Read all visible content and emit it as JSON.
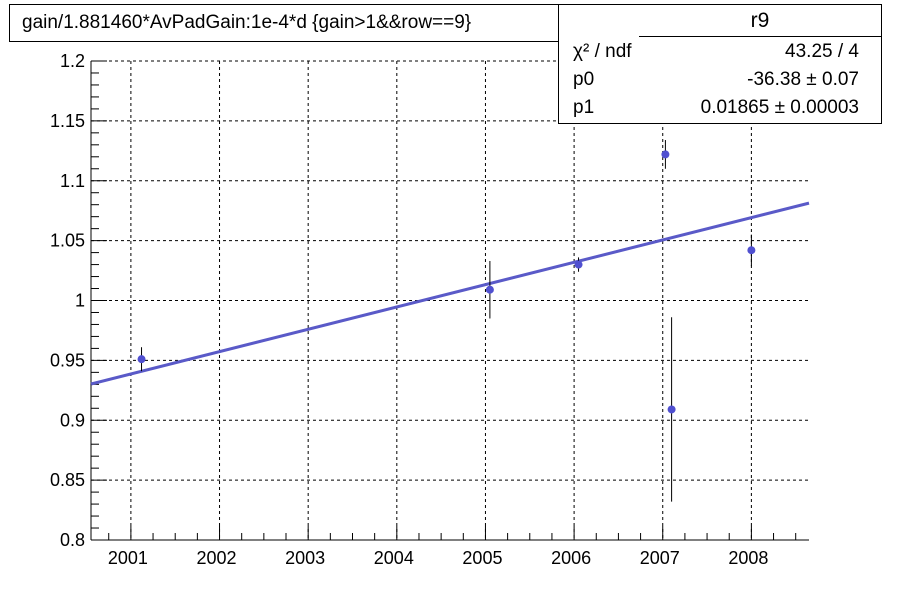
{
  "title": "gain/1.881460*AvPadGain:1e-4*d  {gain>1&&row==9}",
  "stats": {
    "name": "r9",
    "rows": [
      {
        "key": "χ² / ndf",
        "value": "43.25 / 4"
      },
      {
        "key": "p0",
        "value": "-36.38 ± 0.07"
      },
      {
        "key": "p1",
        "value": "0.01865  ± 0.00003"
      }
    ]
  },
  "chart_data": {
    "type": "scatter",
    "title": "gain/1.881460*AvPadGain:1e-4*d  {gain>1&&row==9}",
    "xlabel": "",
    "ylabel": "",
    "xlim": [
      2000.55,
      2008.65
    ],
    "ylim": [
      0.8,
      1.2
    ],
    "x_ticks": [
      "2001",
      "2002",
      "2003",
      "2004",
      "2005",
      "2006",
      "2007",
      "2008"
    ],
    "y_ticks": [
      "0.8",
      "0.85",
      "0.9",
      "0.95",
      "1",
      "1.05",
      "1.1",
      "1.15",
      "1.2"
    ],
    "grid": true,
    "points": [
      {
        "x": 2001.12,
        "y": 0.951,
        "err": 0.01
      },
      {
        "x": 2005.05,
        "y": 1.009,
        "err": 0.024
      },
      {
        "x": 2006.05,
        "y": 1.03,
        "err": 0.006
      },
      {
        "x": 2007.03,
        "y": 1.122,
        "err": 0.012
      },
      {
        "x": 2007.1,
        "y": 0.909,
        "err": 0.077
      },
      {
        "x": 2008.0,
        "y": 1.042,
        "err": 0.013
      }
    ],
    "fit": {
      "type": "linear",
      "p0": -36.38,
      "p1": 0.01865,
      "x_range": [
        2000.55,
        2008.65
      ]
    },
    "colors": {
      "marker": "#5050d0",
      "fit": "#5a5ac8",
      "axis": "#000000",
      "grid": "#000000"
    }
  }
}
